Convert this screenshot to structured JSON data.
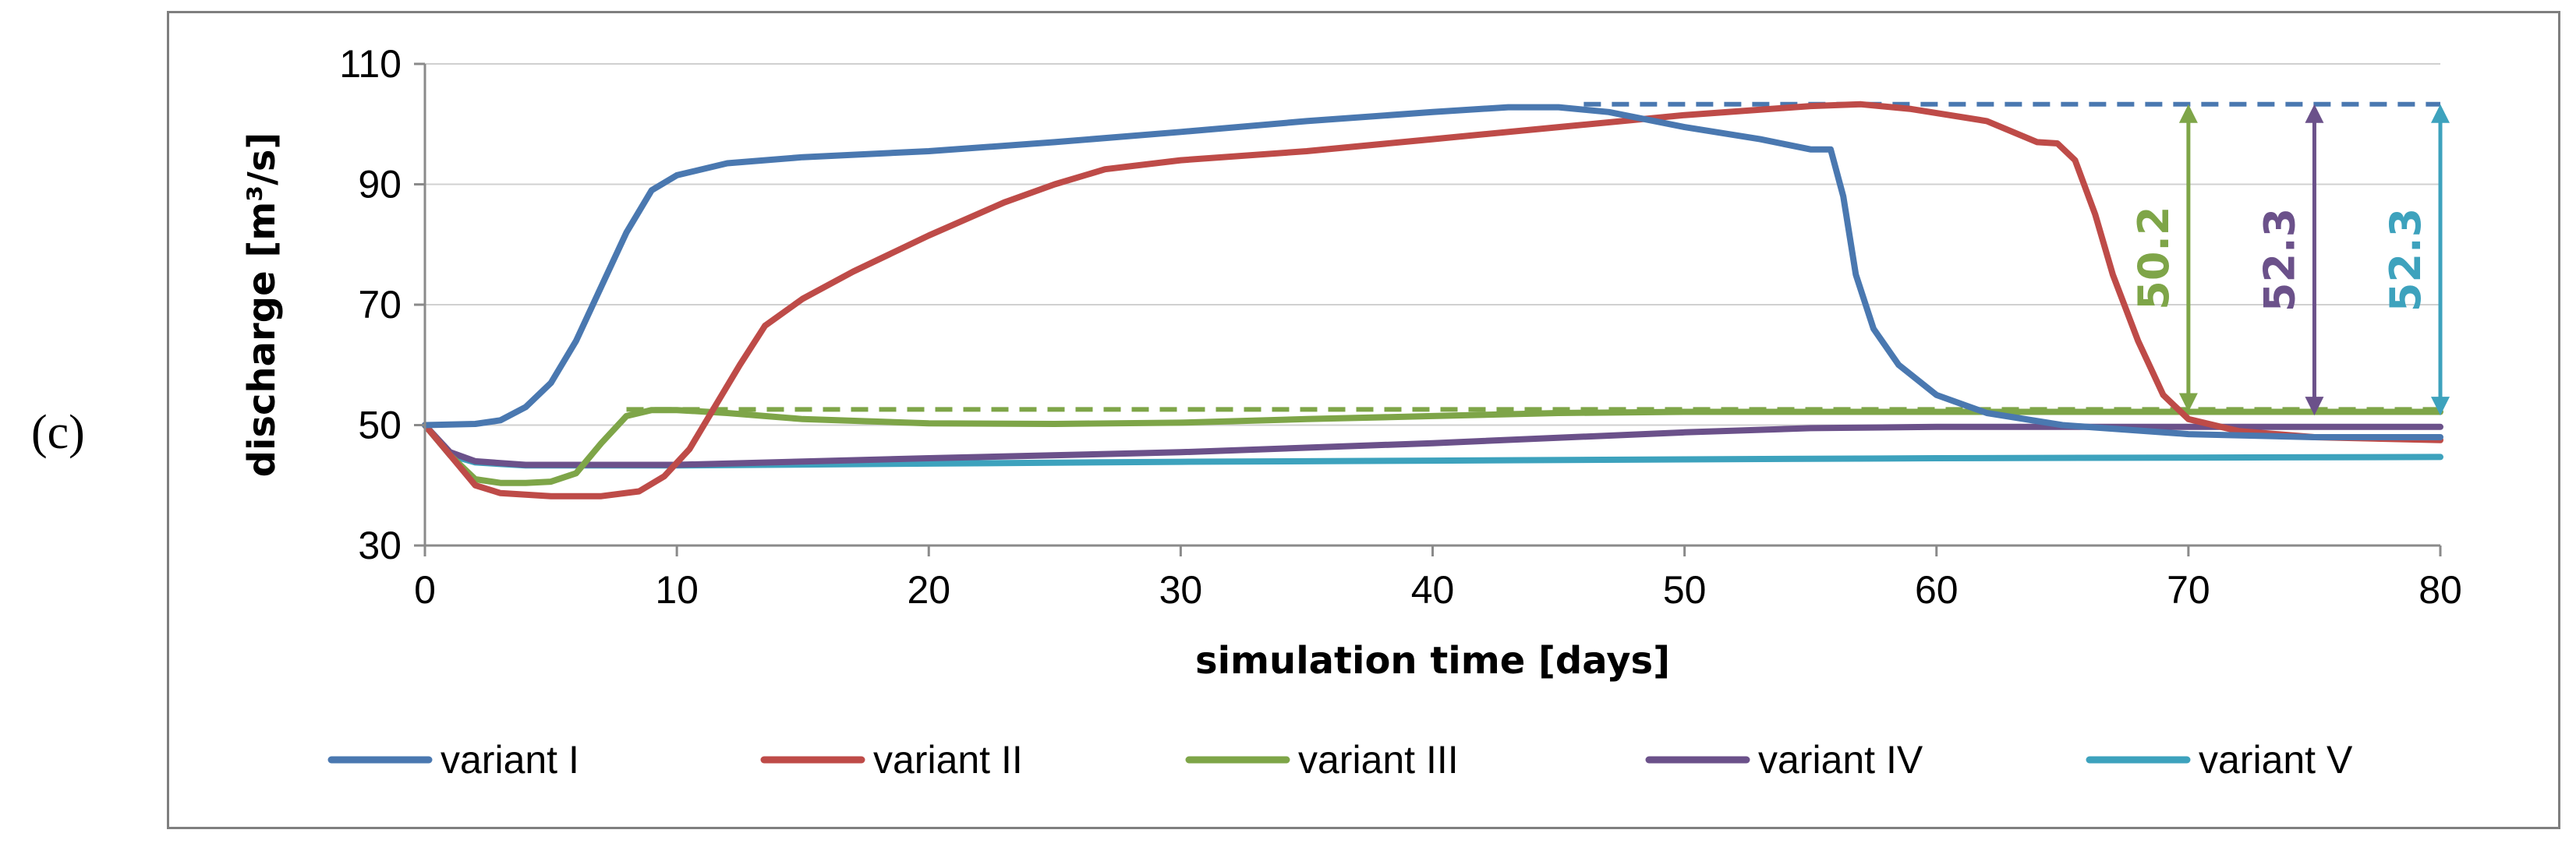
{
  "panel_label": "(c)",
  "chart_data": {
    "type": "line",
    "title": "",
    "xlabel": "simulation time [days]",
    "ylabel": "discharge [m³/s]",
    "xlim": [
      0,
      80
    ],
    "ylim": [
      30,
      110
    ],
    "xticks": [
      0,
      10,
      20,
      30,
      40,
      50,
      60,
      70,
      80
    ],
    "yticks": [
      30,
      50,
      70,
      90,
      110
    ],
    "grid": "horizontal",
    "legend_position": "bottom",
    "series": [
      {
        "name": "variant I",
        "color": "#4a78b0",
        "points": [
          [
            0,
            50
          ],
          [
            2,
            50.2
          ],
          [
            3,
            50.8
          ],
          [
            4,
            53
          ],
          [
            5,
            57
          ],
          [
            6,
            64
          ],
          [
            7,
            73
          ],
          [
            8,
            82
          ],
          [
            9,
            89
          ],
          [
            10,
            91.5
          ],
          [
            12,
            93.5
          ],
          [
            15,
            94.5
          ],
          [
            20,
            95.5
          ],
          [
            25,
            97
          ],
          [
            30,
            98.7
          ],
          [
            35,
            100.5
          ],
          [
            40,
            102
          ],
          [
            43,
            102.8
          ],
          [
            45,
            102.8
          ],
          [
            47,
            102
          ],
          [
            50,
            99.5
          ],
          [
            53,
            97.5
          ],
          [
            55,
            95.8
          ],
          [
            55.8,
            95.8
          ],
          [
            56.3,
            88
          ],
          [
            56.8,
            75
          ],
          [
            57.5,
            66
          ],
          [
            58.5,
            60
          ],
          [
            60,
            55
          ],
          [
            62,
            52
          ],
          [
            65,
            50
          ],
          [
            70,
            48.5
          ],
          [
            75,
            48
          ],
          [
            80,
            48
          ]
        ]
      },
      {
        "name": "variant II",
        "color": "#be4b48",
        "points": [
          [
            0,
            50
          ],
          [
            1,
            45
          ],
          [
            2,
            40
          ],
          [
            3,
            38.7
          ],
          [
            5,
            38.2
          ],
          [
            7,
            38.2
          ],
          [
            8.5,
            39
          ],
          [
            9.5,
            41.5
          ],
          [
            10.5,
            46
          ],
          [
            11.5,
            53
          ],
          [
            12.5,
            60
          ],
          [
            13.5,
            66.5
          ],
          [
            15,
            71
          ],
          [
            17,
            75.5
          ],
          [
            20,
            81.5
          ],
          [
            23,
            87
          ],
          [
            25,
            90
          ],
          [
            27,
            92.5
          ],
          [
            30,
            94
          ],
          [
            35,
            95.5
          ],
          [
            40,
            97.5
          ],
          [
            45,
            99.5
          ],
          [
            50,
            101.5
          ],
          [
            55,
            103
          ],
          [
            57,
            103.3
          ],
          [
            59,
            102.5
          ],
          [
            62,
            100.5
          ],
          [
            64,
            97
          ],
          [
            64.8,
            96.8
          ],
          [
            65.5,
            94
          ],
          [
            66.3,
            85
          ],
          [
            67,
            75
          ],
          [
            68,
            64
          ],
          [
            69,
            55
          ],
          [
            70,
            51
          ],
          [
            72,
            49
          ],
          [
            75,
            48
          ],
          [
            80,
            47.5
          ]
        ]
      },
      {
        "name": "variant III",
        "color": "#7ea548",
        "points": [
          [
            0,
            50
          ],
          [
            1,
            45
          ],
          [
            2,
            41
          ],
          [
            3,
            40.4
          ],
          [
            4,
            40.4
          ],
          [
            5,
            40.6
          ],
          [
            6,
            42
          ],
          [
            7,
            47
          ],
          [
            8,
            51.5
          ],
          [
            9,
            52.5
          ],
          [
            10,
            52.5
          ],
          [
            12,
            52
          ],
          [
            15,
            51
          ],
          [
            20,
            50.3
          ],
          [
            25,
            50.2
          ],
          [
            30,
            50.4
          ],
          [
            35,
            51
          ],
          [
            40,
            51.5
          ],
          [
            45,
            52
          ],
          [
            50,
            52.2
          ],
          [
            60,
            52.2
          ],
          [
            70,
            52.2
          ],
          [
            80,
            52.2
          ]
        ]
      },
      {
        "name": "variant IV",
        "color": "#6b518a",
        "points": [
          [
            0,
            50
          ],
          [
            1,
            45.5
          ],
          [
            2,
            44
          ],
          [
            4,
            43.4
          ],
          [
            10,
            43.4
          ],
          [
            20,
            44.5
          ],
          [
            30,
            45.5
          ],
          [
            40,
            47
          ],
          [
            50,
            48.8
          ],
          [
            55,
            49.5
          ],
          [
            60,
            49.7
          ],
          [
            70,
            49.7
          ],
          [
            80,
            49.7
          ]
        ]
      },
      {
        "name": "variant V",
        "color": "#3da2bd",
        "points": [
          [
            0,
            50
          ],
          [
            1,
            45
          ],
          [
            2,
            43.8
          ],
          [
            4,
            43.3
          ],
          [
            10,
            43.3
          ],
          [
            20,
            43.6
          ],
          [
            30,
            43.9
          ],
          [
            40,
            44.1
          ],
          [
            50,
            44.3
          ],
          [
            60,
            44.5
          ],
          [
            70,
            44.6
          ],
          [
            80,
            44.7
          ]
        ]
      }
    ],
    "reference_lines": [
      {
        "series": "variant I",
        "y": 103.3,
        "x_start": 46,
        "x_end": 80,
        "color": "#4a78b0"
      },
      {
        "series": "variant III",
        "y": 52.6,
        "x_start": 8,
        "x_end": 80,
        "color": "#7ea548"
      }
    ],
    "annotations": [
      {
        "label": "50.2",
        "x": 70,
        "y_from": 52.2,
        "y_to": 103.3,
        "color": "#7ea548"
      },
      {
        "label": "52.3",
        "x": 75,
        "y_from": 51.6,
        "y_to": 103.3,
        "color": "#6b518a"
      },
      {
        "label": "52.3",
        "x": 80,
        "y_from": 51.6,
        "y_to": 103.3,
        "color": "#3da2bd"
      }
    ]
  }
}
